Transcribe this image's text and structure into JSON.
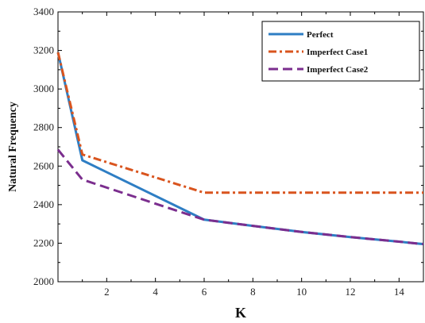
{
  "chart_data": {
    "type": "line",
    "title": "",
    "xlabel": "K",
    "ylabel": "Natural Frequency",
    "xlim": [
      0,
      15
    ],
    "ylim": [
      2000,
      3400
    ],
    "xticks": [
      2,
      4,
      6,
      8,
      10,
      12,
      14
    ],
    "yticks": [
      2000,
      2200,
      2400,
      2600,
      2800,
      3000,
      3200,
      3400
    ],
    "grid": false,
    "legend_position": "top-right",
    "series": [
      {
        "name": "Perfect",
        "color": "#2e7ec4",
        "dash": "solid",
        "x": [
          0,
          1,
          6,
          8,
          10,
          12,
          14,
          15
        ],
        "y": [
          3190,
          2630,
          2322,
          2290,
          2258,
          2232,
          2208,
          2195
        ]
      },
      {
        "name": "Imperfect Case1",
        "color": "#d9541e",
        "dash": "dashdot",
        "x": [
          0,
          1,
          6,
          8,
          10,
          12,
          14,
          15
        ],
        "y": [
          3190,
          2660,
          2462,
          2462,
          2462,
          2462,
          2462,
          2462
        ]
      },
      {
        "name": "Imperfect Case2",
        "color": "#7b2e8e",
        "dash": "dashed",
        "x": [
          0,
          1,
          6,
          8,
          10,
          12,
          14,
          15
        ],
        "y": [
          2685,
          2530,
          2322,
          2290,
          2258,
          2232,
          2208,
          2195
        ]
      }
    ]
  }
}
